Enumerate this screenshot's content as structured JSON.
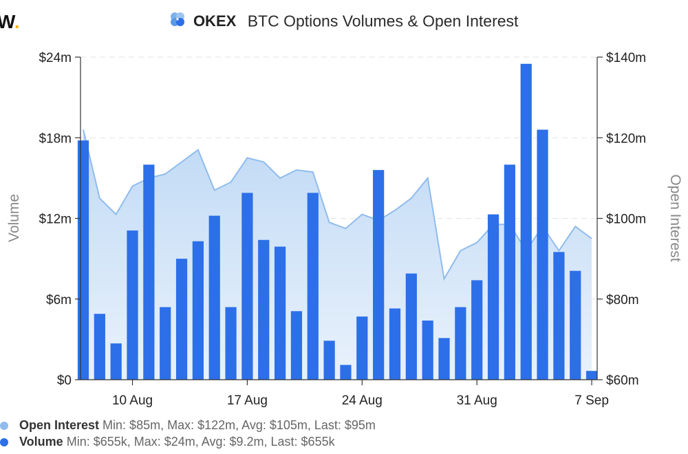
{
  "brand": {
    "wordmark": "W",
    "dot": "."
  },
  "header": {
    "logo_text": "OKEX",
    "title": "BTC Options Volumes & Open Interest"
  },
  "chart_data": {
    "type": "bar",
    "title": "BTC Options Volumes & Open Interest",
    "left_axis": {
      "label": "Volume",
      "ticks": [
        "$0",
        "$6m",
        "$12m",
        "$18m",
        "$24m"
      ],
      "range": [
        0,
        24
      ],
      "unit": "$m"
    },
    "right_axis": {
      "label": "Open Interest",
      "ticks": [
        "$60m",
        "$80m",
        "$100m",
        "$120m",
        "$140m"
      ],
      "range": [
        60,
        140
      ],
      "unit": "$m"
    },
    "x_ticks": [
      {
        "label": "10 Aug",
        "day": 10
      },
      {
        "label": "17 Aug",
        "day": 17
      },
      {
        "label": "24 Aug",
        "day": 24
      },
      {
        "label": "31 Aug",
        "day": 31
      },
      {
        "label": "7 Sep",
        "day": 38
      }
    ],
    "dates": [
      "7 Aug",
      "8 Aug",
      "9 Aug",
      "10 Aug",
      "11 Aug",
      "12 Aug",
      "13 Aug",
      "14 Aug",
      "15 Aug",
      "16 Aug",
      "17 Aug",
      "18 Aug",
      "19 Aug",
      "20 Aug",
      "21 Aug",
      "22 Aug",
      "23 Aug",
      "24 Aug",
      "25 Aug",
      "26 Aug",
      "27 Aug",
      "28 Aug",
      "29 Aug",
      "30 Aug",
      "31 Aug",
      "1 Sep",
      "2 Sep",
      "3 Sep",
      "4 Sep",
      "5 Sep",
      "6 Sep",
      "7 Sep"
    ],
    "series": [
      {
        "name": "Volume",
        "kind": "bar",
        "axis": "left",
        "color": "#2c6fe8",
        "values": [
          17.8,
          4.9,
          2.7,
          11.1,
          16.0,
          5.4,
          9.0,
          10.3,
          12.2,
          5.4,
          13.9,
          10.4,
          9.9,
          5.1,
          13.9,
          2.9,
          1.1,
          4.7,
          15.6,
          5.3,
          7.9,
          4.4,
          3.1,
          5.4,
          7.4,
          12.3,
          16.0,
          23.5,
          18.6,
          9.5,
          8.1,
          0.655
        ]
      },
      {
        "name": "Open Interest",
        "kind": "area",
        "axis": "right",
        "color": "#8fbcec",
        "values": [
          122,
          105,
          101,
          108,
          110,
          111,
          114,
          117,
          107,
          109,
          115,
          114,
          110,
          112,
          111.5,
          99,
          97.5,
          101,
          99.5,
          102,
          105,
          110,
          85,
          92,
          94,
          98.5,
          98.5,
          92,
          98,
          92,
          98,
          95
        ]
      }
    ],
    "legend": [
      {
        "name": "Open Interest",
        "stats": "Min: $85m, Max: $122m, Avg: $105m, Last: $95m",
        "color": "#8fbcec"
      },
      {
        "name": "Volume",
        "stats": "Min: $655k, Max: $24m, Avg: $9.2m, Last: $655k",
        "color": "#2c6fe8"
      }
    ]
  }
}
